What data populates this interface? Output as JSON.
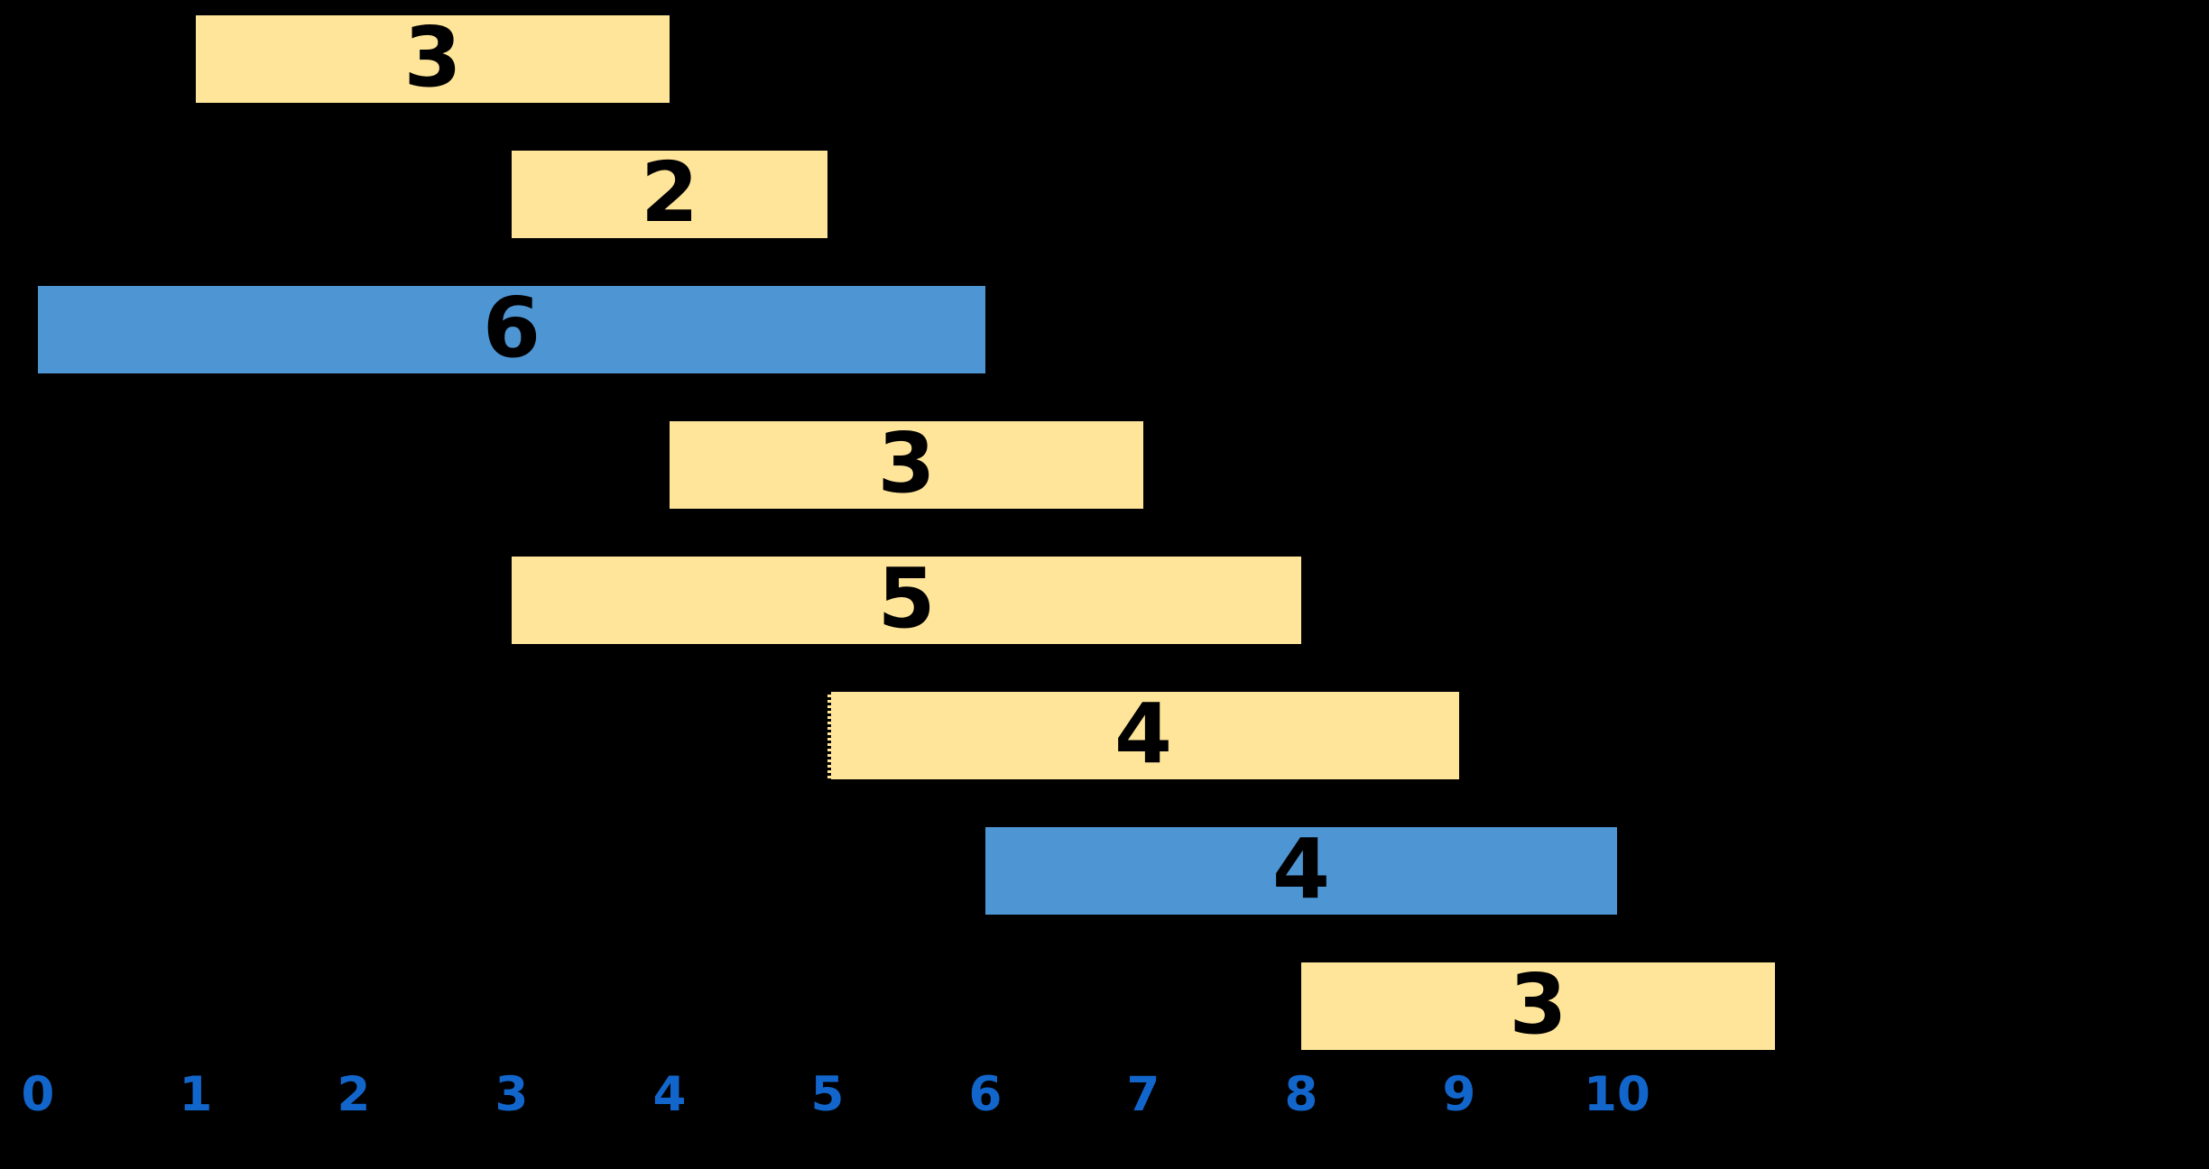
{
  "background_color": "#000000",
  "chart_data": {
    "type": "bar",
    "subtype": "gantt",
    "title": "",
    "xlabel": "",
    "ylabel": "",
    "grid": false,
    "legend": false,
    "x_axis": {
      "tick_labels": [
        "0",
        "1",
        "2",
        "3",
        "4",
        "5",
        "6",
        "7",
        "8",
        "9",
        "10"
      ],
      "tick_values": [
        0,
        1,
        2,
        3,
        4,
        5,
        6,
        7,
        8,
        9,
        10
      ],
      "tick_color": "#1266CB"
    },
    "colors": {
      "normal_bar_fill": "#FFE59A",
      "highlight_bar_fill": "#4E95D4",
      "bar_label_color": "#000000",
      "background": "#000000"
    },
    "bars": [
      {
        "row": 1,
        "start": 1,
        "end": 4,
        "duration": 3,
        "label": "3",
        "fill": "#FFE59A",
        "dashed_left_edge": false
      },
      {
        "row": 2,
        "start": 3,
        "end": 5,
        "duration": 2,
        "label": "2",
        "fill": "#FFE59A",
        "dashed_left_edge": false
      },
      {
        "row": 3,
        "start": 0,
        "end": 6,
        "duration": 6,
        "label": "6",
        "fill": "#4E95D4",
        "dashed_left_edge": false
      },
      {
        "row": 4,
        "start": 4,
        "end": 7,
        "duration": 3,
        "label": "3",
        "fill": "#FFE59A",
        "dashed_left_edge": false
      },
      {
        "row": 5,
        "start": 3,
        "end": 8,
        "duration": 5,
        "label": "5",
        "fill": "#FFE59A",
        "dashed_left_edge": false
      },
      {
        "row": 6,
        "start": 5,
        "end": 9,
        "duration": 4,
        "label": "4",
        "fill": "#FFE59A",
        "dashed_left_edge": true
      },
      {
        "row": 7,
        "start": 6,
        "end": 10,
        "duration": 4,
        "label": "4",
        "fill": "#4E95D4",
        "dashed_left_edge": false
      },
      {
        "row": 8,
        "start": 8,
        "end": 11,
        "duration": 3,
        "label": "3",
        "fill": "#FFE59A",
        "dashed_left_edge": false
      }
    ]
  }
}
